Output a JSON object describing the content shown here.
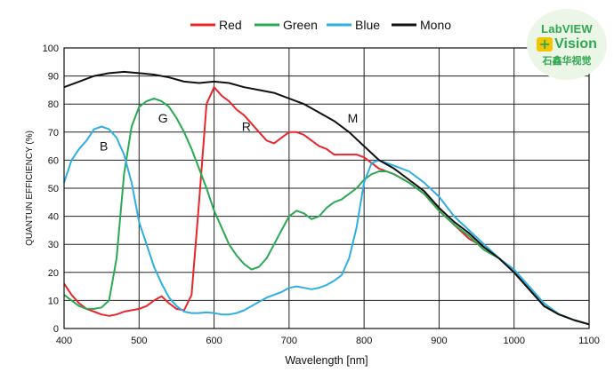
{
  "chart_data": {
    "type": "line",
    "title": "",
    "xlabel": "Wavelength [nm]",
    "ylabel": "QUANTUN EFFICIENCY (%)",
    "xlim": [
      400,
      1100
    ],
    "ylim": [
      0,
      100
    ],
    "xticks": [
      400,
      500,
      600,
      700,
      800,
      900,
      1000,
      1100
    ],
    "yticks": [
      0,
      10,
      20,
      30,
      40,
      50,
      60,
      70,
      80,
      90,
      100
    ],
    "grid": true,
    "legend_position": "top",
    "series": [
      {
        "name": "Red",
        "color": "#e8262b",
        "points": [
          [
            400,
            16
          ],
          [
            410,
            12
          ],
          [
            420,
            9
          ],
          [
            430,
            7
          ],
          [
            440,
            6
          ],
          [
            450,
            5
          ],
          [
            460,
            4.5
          ],
          [
            470,
            5
          ],
          [
            480,
            6
          ],
          [
            500,
            7
          ],
          [
            510,
            8
          ],
          [
            520,
            10
          ],
          [
            530,
            11.5
          ],
          [
            540,
            9
          ],
          [
            550,
            7
          ],
          [
            560,
            6.5
          ],
          [
            570,
            12
          ],
          [
            580,
            45
          ],
          [
            590,
            80
          ],
          [
            600,
            86
          ],
          [
            610,
            83
          ],
          [
            620,
            81
          ],
          [
            630,
            78
          ],
          [
            640,
            76
          ],
          [
            650,
            73
          ],
          [
            660,
            70
          ],
          [
            670,
            67
          ],
          [
            680,
            66
          ],
          [
            690,
            68
          ],
          [
            700,
            70
          ],
          [
            710,
            70
          ],
          [
            720,
            69
          ],
          [
            730,
            67
          ],
          [
            740,
            65
          ],
          [
            750,
            64
          ],
          [
            760,
            62
          ],
          [
            770,
            62
          ],
          [
            780,
            62
          ],
          [
            790,
            62
          ],
          [
            800,
            61
          ],
          [
            820,
            57
          ],
          [
            840,
            55
          ],
          [
            860,
            52
          ],
          [
            880,
            48
          ],
          [
            900,
            42
          ],
          [
            920,
            37
          ],
          [
            940,
            32
          ],
          [
            960,
            29
          ],
          [
            980,
            25
          ],
          [
            1000,
            20
          ],
          [
            1020,
            14
          ],
          [
            1040,
            8
          ],
          [
            1060,
            5
          ],
          [
            1080,
            3
          ],
          [
            1100,
            1.5
          ]
        ]
      },
      {
        "name": "Green",
        "color": "#2aa952",
        "points": [
          [
            400,
            12
          ],
          [
            410,
            10
          ],
          [
            420,
            8
          ],
          [
            430,
            7
          ],
          [
            440,
            7
          ],
          [
            450,
            7.5
          ],
          [
            460,
            10
          ],
          [
            470,
            25
          ],
          [
            480,
            55
          ],
          [
            490,
            72
          ],
          [
            500,
            79
          ],
          [
            510,
            81
          ],
          [
            520,
            82
          ],
          [
            530,
            81
          ],
          [
            540,
            79
          ],
          [
            550,
            75
          ],
          [
            560,
            70
          ],
          [
            570,
            64
          ],
          [
            580,
            57
          ],
          [
            590,
            50
          ],
          [
            600,
            42
          ],
          [
            610,
            36
          ],
          [
            620,
            30
          ],
          [
            630,
            26
          ],
          [
            640,
            23
          ],
          [
            650,
            21
          ],
          [
            660,
            22
          ],
          [
            670,
            25
          ],
          [
            680,
            30
          ],
          [
            690,
            35
          ],
          [
            700,
            40
          ],
          [
            710,
            42
          ],
          [
            720,
            41
          ],
          [
            730,
            39
          ],
          [
            740,
            40
          ],
          [
            750,
            43
          ],
          [
            760,
            45
          ],
          [
            770,
            46
          ],
          [
            780,
            48
          ],
          [
            790,
            50
          ],
          [
            800,
            53
          ],
          [
            810,
            55
          ],
          [
            820,
            56
          ],
          [
            830,
            56
          ],
          [
            840,
            55
          ],
          [
            860,
            52
          ],
          [
            880,
            48
          ],
          [
            900,
            42
          ],
          [
            920,
            37
          ],
          [
            940,
            33
          ],
          [
            960,
            28
          ],
          [
            980,
            25
          ],
          [
            1000,
            20
          ],
          [
            1020,
            14
          ],
          [
            1040,
            8
          ],
          [
            1060,
            5
          ],
          [
            1080,
            3
          ],
          [
            1100,
            1.5
          ]
        ]
      },
      {
        "name": "Blue",
        "color": "#2eaee3",
        "points": [
          [
            400,
            52
          ],
          [
            410,
            60
          ],
          [
            420,
            64
          ],
          [
            430,
            67
          ],
          [
            440,
            71
          ],
          [
            450,
            72
          ],
          [
            460,
            71
          ],
          [
            470,
            68
          ],
          [
            480,
            62
          ],
          [
            490,
            52
          ],
          [
            500,
            38
          ],
          [
            510,
            30
          ],
          [
            520,
            22
          ],
          [
            530,
            16
          ],
          [
            540,
            11
          ],
          [
            550,
            8
          ],
          [
            560,
            6
          ],
          [
            570,
            5.5
          ],
          [
            580,
            5.5
          ],
          [
            590,
            5.8
          ],
          [
            600,
            5.5
          ],
          [
            610,
            5
          ],
          [
            620,
            5
          ],
          [
            630,
            5.5
          ],
          [
            640,
            6.5
          ],
          [
            650,
            8
          ],
          [
            660,
            9.5
          ],
          [
            670,
            11
          ],
          [
            680,
            12
          ],
          [
            690,
            13
          ],
          [
            700,
            14.5
          ],
          [
            710,
            15
          ],
          [
            720,
            14.5
          ],
          [
            730,
            14
          ],
          [
            740,
            14.5
          ],
          [
            750,
            15.5
          ],
          [
            760,
            17
          ],
          [
            770,
            19
          ],
          [
            780,
            25
          ],
          [
            790,
            36
          ],
          [
            800,
            52
          ],
          [
            810,
            59
          ],
          [
            820,
            60
          ],
          [
            830,
            59
          ],
          [
            840,
            58
          ],
          [
            860,
            56
          ],
          [
            880,
            52
          ],
          [
            900,
            47
          ],
          [
            920,
            40
          ],
          [
            940,
            35
          ],
          [
            960,
            30
          ],
          [
            980,
            25
          ],
          [
            1000,
            21
          ],
          [
            1020,
            15
          ],
          [
            1040,
            9
          ],
          [
            1060,
            5
          ],
          [
            1080,
            3
          ],
          [
            1100,
            1.5
          ]
        ]
      },
      {
        "name": "Mono",
        "color": "#111111",
        "points": [
          [
            400,
            86
          ],
          [
            420,
            88
          ],
          [
            440,
            90
          ],
          [
            460,
            91
          ],
          [
            480,
            91.5
          ],
          [
            500,
            91
          ],
          [
            520,
            90.5
          ],
          [
            540,
            89.5
          ],
          [
            560,
            88
          ],
          [
            580,
            87.5
          ],
          [
            600,
            88
          ],
          [
            620,
            87.5
          ],
          [
            640,
            86
          ],
          [
            660,
            85
          ],
          [
            680,
            84
          ],
          [
            700,
            82
          ],
          [
            720,
            80
          ],
          [
            740,
            77
          ],
          [
            760,
            74
          ],
          [
            780,
            70
          ],
          [
            800,
            65
          ],
          [
            820,
            60
          ],
          [
            840,
            57
          ],
          [
            860,
            53
          ],
          [
            880,
            49
          ],
          [
            900,
            43
          ],
          [
            920,
            38
          ],
          [
            940,
            34
          ],
          [
            960,
            29
          ],
          [
            980,
            25
          ],
          [
            1000,
            20
          ],
          [
            1020,
            14
          ],
          [
            1040,
            8
          ],
          [
            1060,
            5
          ],
          [
            1080,
            3
          ],
          [
            1100,
            1.5
          ]
        ]
      }
    ],
    "annotations": [
      {
        "text": "B",
        "x": 453,
        "y": 65
      },
      {
        "text": "G",
        "x": 532,
        "y": 75
      },
      {
        "text": "R",
        "x": 643,
        "y": 72
      },
      {
        "text": "M",
        "x": 785,
        "y": 75
      }
    ]
  },
  "logo": {
    "line1": "LabVIEW",
    "plus": "+",
    "line2": "Vision",
    "line3": "石鑫华视觉"
  }
}
